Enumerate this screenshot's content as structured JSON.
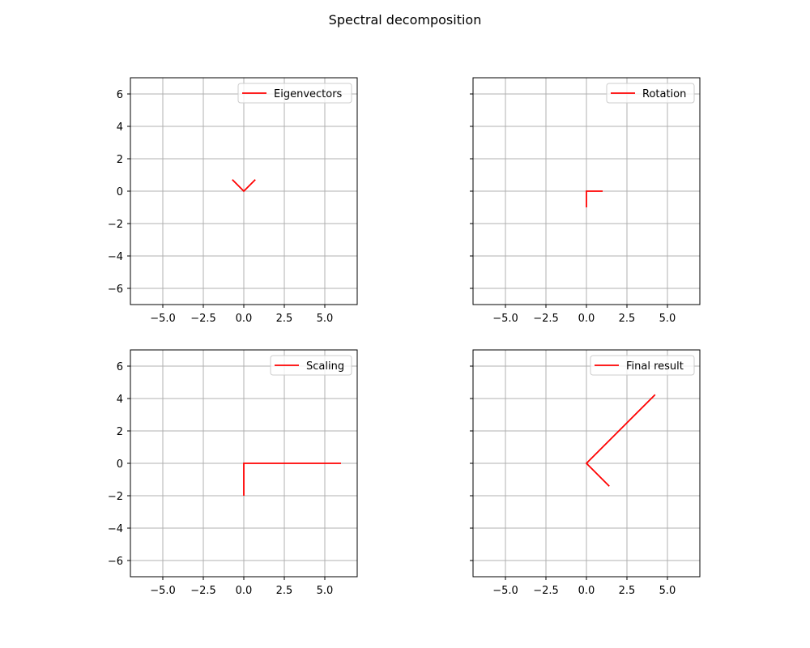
{
  "title": "Spectral decomposition",
  "colors": {
    "line": "#ff0000",
    "grid": "#b0b0b0",
    "axes": "#000000",
    "background": "#ffffff"
  },
  "chart_data": [
    {
      "type": "line",
      "legend": "Eigenvectors",
      "legend_location": "upper right",
      "grid": true,
      "xlim": [
        -7,
        7
      ],
      "ylim": [
        -7,
        7
      ],
      "xticks": [
        "−5.0",
        "−2.5",
        "0.0",
        "2.5",
        "5.0"
      ],
      "yticks": [
        "6",
        "4",
        "2",
        "0",
        "−2",
        "−4",
        "−6"
      ],
      "show_ytick_labels": true,
      "points": [
        [
          -0.71,
          0.71
        ],
        [
          0,
          0
        ],
        [
          0.71,
          0.71
        ]
      ]
    },
    {
      "type": "line",
      "legend": "Rotation",
      "legend_location": "upper right",
      "grid": true,
      "xlim": [
        -7,
        7
      ],
      "ylim": [
        -7,
        7
      ],
      "xticks": [
        "−5.0",
        "−2.5",
        "0.0",
        "2.5",
        "5.0"
      ],
      "yticks": [
        "6",
        "4",
        "2",
        "0",
        "−2",
        "−4",
        "−6"
      ],
      "show_ytick_labels": false,
      "points": [
        [
          1,
          0
        ],
        [
          0,
          0
        ],
        [
          0,
          -1
        ]
      ]
    },
    {
      "type": "line",
      "legend": "Scaling",
      "legend_location": "upper right",
      "grid": true,
      "xlim": [
        -7,
        7
      ],
      "ylim": [
        -7,
        7
      ],
      "xticks": [
        "−5.0",
        "−2.5",
        "0.0",
        "2.5",
        "5.0"
      ],
      "yticks": [
        "6",
        "4",
        "2",
        "0",
        "−2",
        "−4",
        "−6"
      ],
      "show_ytick_labels": true,
      "points": [
        [
          6,
          0
        ],
        [
          0,
          0
        ],
        [
          0,
          -2
        ]
      ]
    },
    {
      "type": "line",
      "legend": "Final result",
      "legend_location": "upper right",
      "grid": true,
      "xlim": [
        -7,
        7
      ],
      "ylim": [
        -7,
        7
      ],
      "xticks": [
        "−5.0",
        "−2.5",
        "0.0",
        "2.5",
        "5.0"
      ],
      "yticks": [
        "6",
        "4",
        "2",
        "0",
        "−2",
        "−4",
        "−6"
      ],
      "show_ytick_labels": false,
      "points": [
        [
          4.24,
          4.24
        ],
        [
          0,
          0
        ],
        [
          1.41,
          -1.41
        ]
      ]
    }
  ]
}
